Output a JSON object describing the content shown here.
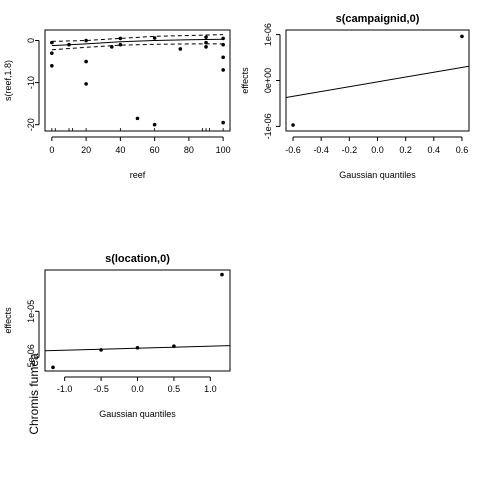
{
  "outer_label": "Chromis fumea",
  "chart_data": [
    {
      "type": "scatter",
      "title": "",
      "xlabel": "reef",
      "ylabel": "s(reef,1.8)",
      "xlim": [
        -4,
        104
      ],
      "ylim": [
        -21.5,
        2.5
      ],
      "xticks": [
        0,
        20,
        40,
        60,
        80,
        100
      ],
      "yticks": [
        -20,
        -10,
        0
      ],
      "ytick_labels": [
        "-20",
        "-10",
        "0"
      ],
      "points": [
        {
          "x": 0,
          "y": -0.5
        },
        {
          "x": 0,
          "y": -3
        },
        {
          "x": 0,
          "y": -6
        },
        {
          "x": 10,
          "y": -1
        },
        {
          "x": 20,
          "y": 0
        },
        {
          "x": 20,
          "y": -5
        },
        {
          "x": 20,
          "y": -10.3
        },
        {
          "x": 35,
          "y": -1.5
        },
        {
          "x": 40,
          "y": 0.5
        },
        {
          "x": 40,
          "y": -1
        },
        {
          "x": 50,
          "y": -18.5
        },
        {
          "x": 60,
          "y": 0.6
        },
        {
          "x": 60,
          "y": -20
        },
        {
          "x": 75,
          "y": -2
        },
        {
          "x": 90,
          "y": -0.5
        },
        {
          "x": 90,
          "y": -1.5
        },
        {
          "x": 90,
          "y": 0.8
        },
        {
          "x": 100,
          "y": 0.5
        },
        {
          "x": 100,
          "y": -1
        },
        {
          "x": 100,
          "y": -4
        },
        {
          "x": 100,
          "y": -7
        },
        {
          "x": 100,
          "y": -19.5
        }
      ],
      "fit": {
        "x": [
          0,
          20,
          40,
          60,
          80,
          100
        ],
        "y": [
          -1.2,
          -0.8,
          -0.3,
          0.0,
          0.2,
          0.3
        ]
      },
      "upper": {
        "x": [
          0,
          20,
          40,
          60,
          80,
          100
        ],
        "y": [
          -0.2,
          0.0,
          0.5,
          1.0,
          1.2,
          1.4
        ]
      },
      "lower": {
        "x": [
          0,
          20,
          40,
          60,
          80,
          100
        ],
        "y": [
          -2.2,
          -1.6,
          -1.1,
          -0.9,
          -0.8,
          -0.8
        ]
      },
      "rug": [
        0,
        2,
        10,
        12,
        20,
        40,
        60,
        88,
        90,
        92,
        100
      ]
    },
    {
      "type": "scatter",
      "title": "s(campaignid,0)",
      "xlabel": "Gaussian quantiles",
      "ylabel": "effects",
      "xlim": [
        -0.65,
        0.65
      ],
      "ylim": [
        -1.1e-06,
        1.1e-06
      ],
      "xticks": [
        -0.6,
        -0.4,
        -0.2,
        0.0,
        0.2,
        0.4,
        0.6
      ],
      "xtick_labels": [
        "-0.6",
        "-0.4",
        "-0.2",
        "0.0",
        "0.2",
        "0.4",
        "0.6"
      ],
      "yticks": [
        -1e-06,
        0,
        1e-06
      ],
      "ytick_labels": [
        "-1e-06",
        "0e+00",
        "1e-06"
      ],
      "points": [
        {
          "x": -0.6,
          "y": -9.7e-07
        },
        {
          "x": 0.6,
          "y": 9.6e-07
        }
      ],
      "line": {
        "x": [
          -0.65,
          0.65
        ],
        "y": [
          -3.7e-07,
          3.1e-07
        ]
      }
    },
    {
      "type": "scatter",
      "title": "s(location,0)",
      "xlabel": "Gaussian quantiles",
      "ylabel": "effects",
      "xlim": [
        -1.27,
        1.27
      ],
      "ylim": [
        -9.5e-06,
        2.35e-05
      ],
      "xticks": [
        -1.0,
        -0.5,
        0.0,
        0.5,
        1.0
      ],
      "xtick_labels": [
        "-1.0",
        "-0.5",
        "0.0",
        "0.5",
        "1.0"
      ],
      "yticks": [
        -5e-06,
        1e-05
      ],
      "ytick_labels": [
        "-5e-06",
        "1e-05"
      ],
      "points": [
        {
          "x": -1.16,
          "y": -8.3e-06
        },
        {
          "x": -0.5,
          "y": -2.6e-06
        },
        {
          "x": 0.0,
          "y": -1.9e-06
        },
        {
          "x": 0.5,
          "y": -1.4e-06
        },
        {
          "x": 1.16,
          "y": 2.2e-05
        }
      ],
      "line": {
        "x": [
          -1.27,
          1.27
        ],
        "y": [
          -2.9e-06,
          -1.2e-06
        ]
      }
    }
  ]
}
